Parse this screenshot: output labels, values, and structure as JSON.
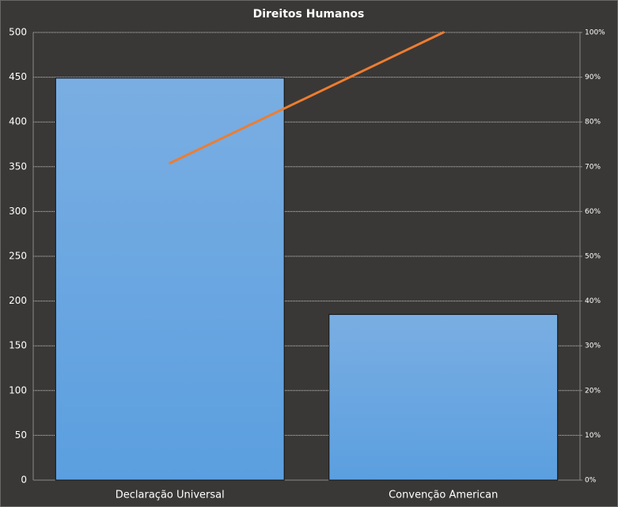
{
  "chart_data": {
    "type": "bar",
    "title": "Direitos  Humanos",
    "categories": [
      "Declaração Universal",
      "Convenção American"
    ],
    "series": [
      {
        "type": "bar",
        "color": "#5b9fe0",
        "values": [
          449,
          185
        ]
      },
      {
        "type": "line",
        "color": "#ed7d31",
        "axis": "y2",
        "values": [
          70.8,
          100
        ]
      }
    ],
    "ylim": [
      0,
      500
    ],
    "yticks": [
      0,
      50,
      100,
      150,
      200,
      250,
      300,
      350,
      400,
      450,
      500
    ],
    "y2lim": [
      0,
      100
    ],
    "y2ticks": [
      {
        "value": 0,
        "label": "0%"
      },
      {
        "value": 10,
        "label": "10%"
      },
      {
        "value": 20,
        "label": "20%"
      },
      {
        "value": 30,
        "label": "30%"
      },
      {
        "value": 40,
        "label": "40%"
      },
      {
        "value": 50,
        "label": "50%"
      },
      {
        "value": 60,
        "label": "60%"
      },
      {
        "value": 70,
        "label": "70%"
      },
      {
        "value": 80,
        "label": "80%"
      },
      {
        "value": 90,
        "label": "90%"
      },
      {
        "value": 100,
        "label": "100%"
      }
    ],
    "grid": true
  }
}
